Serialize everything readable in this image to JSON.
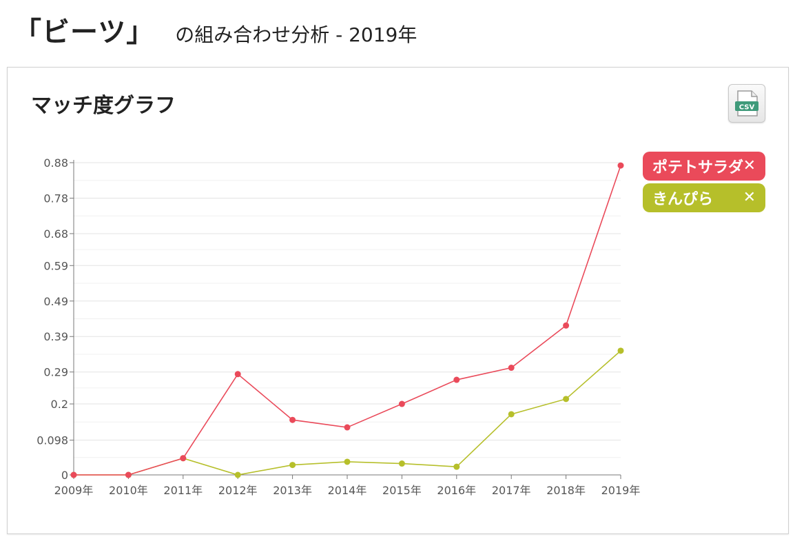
{
  "header": {
    "keyword": "「ビーツ」",
    "subtitle": "の組み合わせ分析 - 2019年"
  },
  "panel": {
    "title": "マッチ度グラフ",
    "csv_label": "CSV"
  },
  "legend": [
    {
      "label": "ポテトサラダ",
      "close": "✕",
      "color": "#ea4a5a"
    },
    {
      "label": "きんぴら",
      "close": "✕",
      "color": "#b6bf2a"
    }
  ],
  "chart_data": {
    "type": "line",
    "x": [
      "2009年",
      "2010年",
      "2011年",
      "2012年",
      "2013年",
      "2014年",
      "2015年",
      "2016年",
      "2017年",
      "2018年",
      "2019年"
    ],
    "y_ticks": [
      "0",
      "0.098",
      "0.2",
      "0.29",
      "0.39",
      "0.49",
      "0.59",
      "0.68",
      "0.78",
      "0.88"
    ],
    "ylim": [
      0,
      0.88
    ],
    "grid": true,
    "legend_position": "top-right",
    "series": [
      {
        "name": "ポテトサラダ",
        "color": "#ea4a5a",
        "values": [
          0,
          0,
          0.047,
          0.284,
          0.155,
          0.134,
          0.2,
          0.268,
          0.302,
          0.421,
          0.872
        ]
      },
      {
        "name": "きんぴら",
        "color": "#b6bf2a",
        "values": [
          0,
          0,
          0.047,
          0,
          0.028,
          0.037,
          0.032,
          0.023,
          0.171,
          0.214,
          0.35
        ]
      }
    ]
  }
}
